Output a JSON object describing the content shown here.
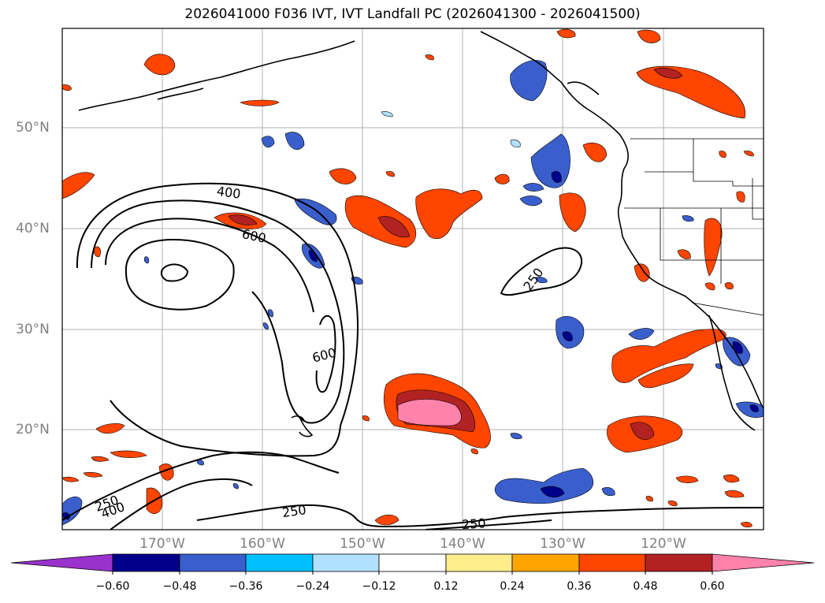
{
  "title": "2026041000 F036 IVT, IVT Landfall PC (2026041300 - 2026041500)",
  "lat_labels": [
    "50°N",
    "40°N",
    "30°N",
    "20°N"
  ],
  "lon_labels": [
    "170°W",
    "160°W",
    "150°W",
    "140°W",
    "130°W",
    "120°W"
  ],
  "contour_labels": [
    "400",
    "600",
    "400",
    "600",
    "250",
    "250",
    "250",
    "250"
  ],
  "colorbar": {
    "ticks": [
      "−0.60",
      "−0.48",
      "−0.36",
      "−0.24",
      "−0.12",
      "0.12",
      "0.24",
      "0.36",
      "0.48",
      "0.60"
    ],
    "colors": [
      "#9932cc",
      "#00008b",
      "#3a5fcd",
      "#00bfff",
      "#b0e2ff",
      "#ffffff",
      "#ffec8b",
      "#ffa500",
      "#ff4500",
      "#b22222",
      "#ff82ab"
    ]
  }
}
